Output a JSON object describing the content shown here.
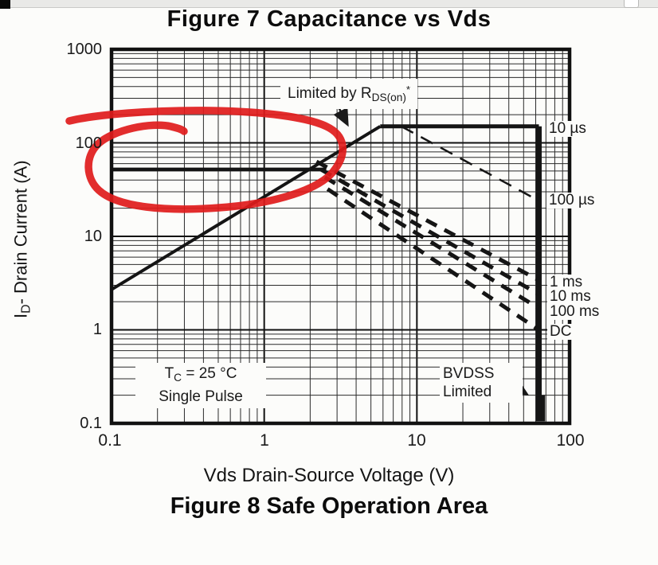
{
  "page": {
    "top_title": "Figure 7 Capacitance vs Vds"
  },
  "chart_data": {
    "type": "line",
    "scale": "log-log",
    "title": "Figure 7 Capacitance vs Vds",
    "caption": "Figure 8 Safe Operation Area",
    "xlabel": "Vds Drain-Source Voltage (V)",
    "ylabel_prefix": "I",
    "ylabel_sub": "D",
    "ylabel_rest": "- Drain Current (A)",
    "xlim": [
      0.1,
      100
    ],
    "ylim": [
      0.1,
      1000
    ],
    "x_tick_labels": [
      "0.1",
      "1",
      "10",
      "100"
    ],
    "y_tick_labels": [
      "1000",
      "100",
      "10",
      "1",
      "0.1"
    ],
    "grid": "log major + minor, both axes",
    "legend_position": "labels at right edge of plot",
    "curve_labels": [
      "10 µs",
      "100 µs",
      "1 ms",
      "10 ms",
      "100 ms",
      "DC"
    ],
    "series": [
      {
        "name": "rds-on-limit-line",
        "style": "solid",
        "width": 4,
        "points": [
          [
            0.1,
            2.7
          ],
          [
            5.75,
            150
          ]
        ]
      },
      {
        "name": "peak-current-10us-plateau",
        "style": "solid",
        "width": 5,
        "points": [
          [
            5.75,
            150
          ],
          [
            63,
            150
          ]
        ]
      },
      {
        "name": "bvdss-limit-vertical",
        "style": "solid",
        "width": 7,
        "points": [
          [
            63,
            150
          ],
          [
            63,
            0.105
          ]
        ]
      },
      {
        "name": "bvdss-limit-edge",
        "style": "solid",
        "width": 5,
        "points": [
          [
            67,
            0.2
          ],
          [
            67,
            0.105
          ]
        ]
      },
      {
        "name": "dc-package-limit-50A",
        "style": "solid",
        "width": 4.5,
        "points": [
          [
            0.1,
            52
          ],
          [
            2.55,
            52
          ]
        ]
      },
      {
        "name": "pulse-100us",
        "style": "dashed-thin",
        "width": 2.5,
        "points": [
          [
            7.9,
            150
          ],
          [
            63,
            24
          ]
        ]
      },
      {
        "name": "pulse-1ms",
        "style": "dashed",
        "width": 5,
        "points": [
          [
            2.2,
            63
          ],
          [
            63,
            3.4
          ]
        ]
      },
      {
        "name": "pulse-10ms",
        "style": "dashed",
        "width": 5,
        "points": [
          [
            2.35,
            52
          ],
          [
            63,
            2.4
          ]
        ]
      },
      {
        "name": "pulse-100ms",
        "style": "dashed",
        "width": 5,
        "points": [
          [
            2.5,
            43
          ],
          [
            63,
            1.7
          ]
        ]
      },
      {
        "name": "pulse-dc",
        "style": "dashed",
        "width": 5,
        "points": [
          [
            2.6,
            32
          ],
          [
            63,
            1.0
          ]
        ]
      }
    ],
    "annotations": {
      "rds_prefix": "Limited by R",
      "rds_sub": "DS(on)",
      "rds_sup": "*",
      "cond_prefix": "T",
      "cond_sub": "C",
      "cond_rest": " = 25 °C",
      "cond_line2": "Single Pulse",
      "bvdss_line1": "BVDSS",
      "bvdss_line2": "Limited",
      "red_markup": "hand-drawn red loop highlighting the 50 A DC-limit line at low Vds",
      "red_color": "#e01b1b"
    }
  }
}
